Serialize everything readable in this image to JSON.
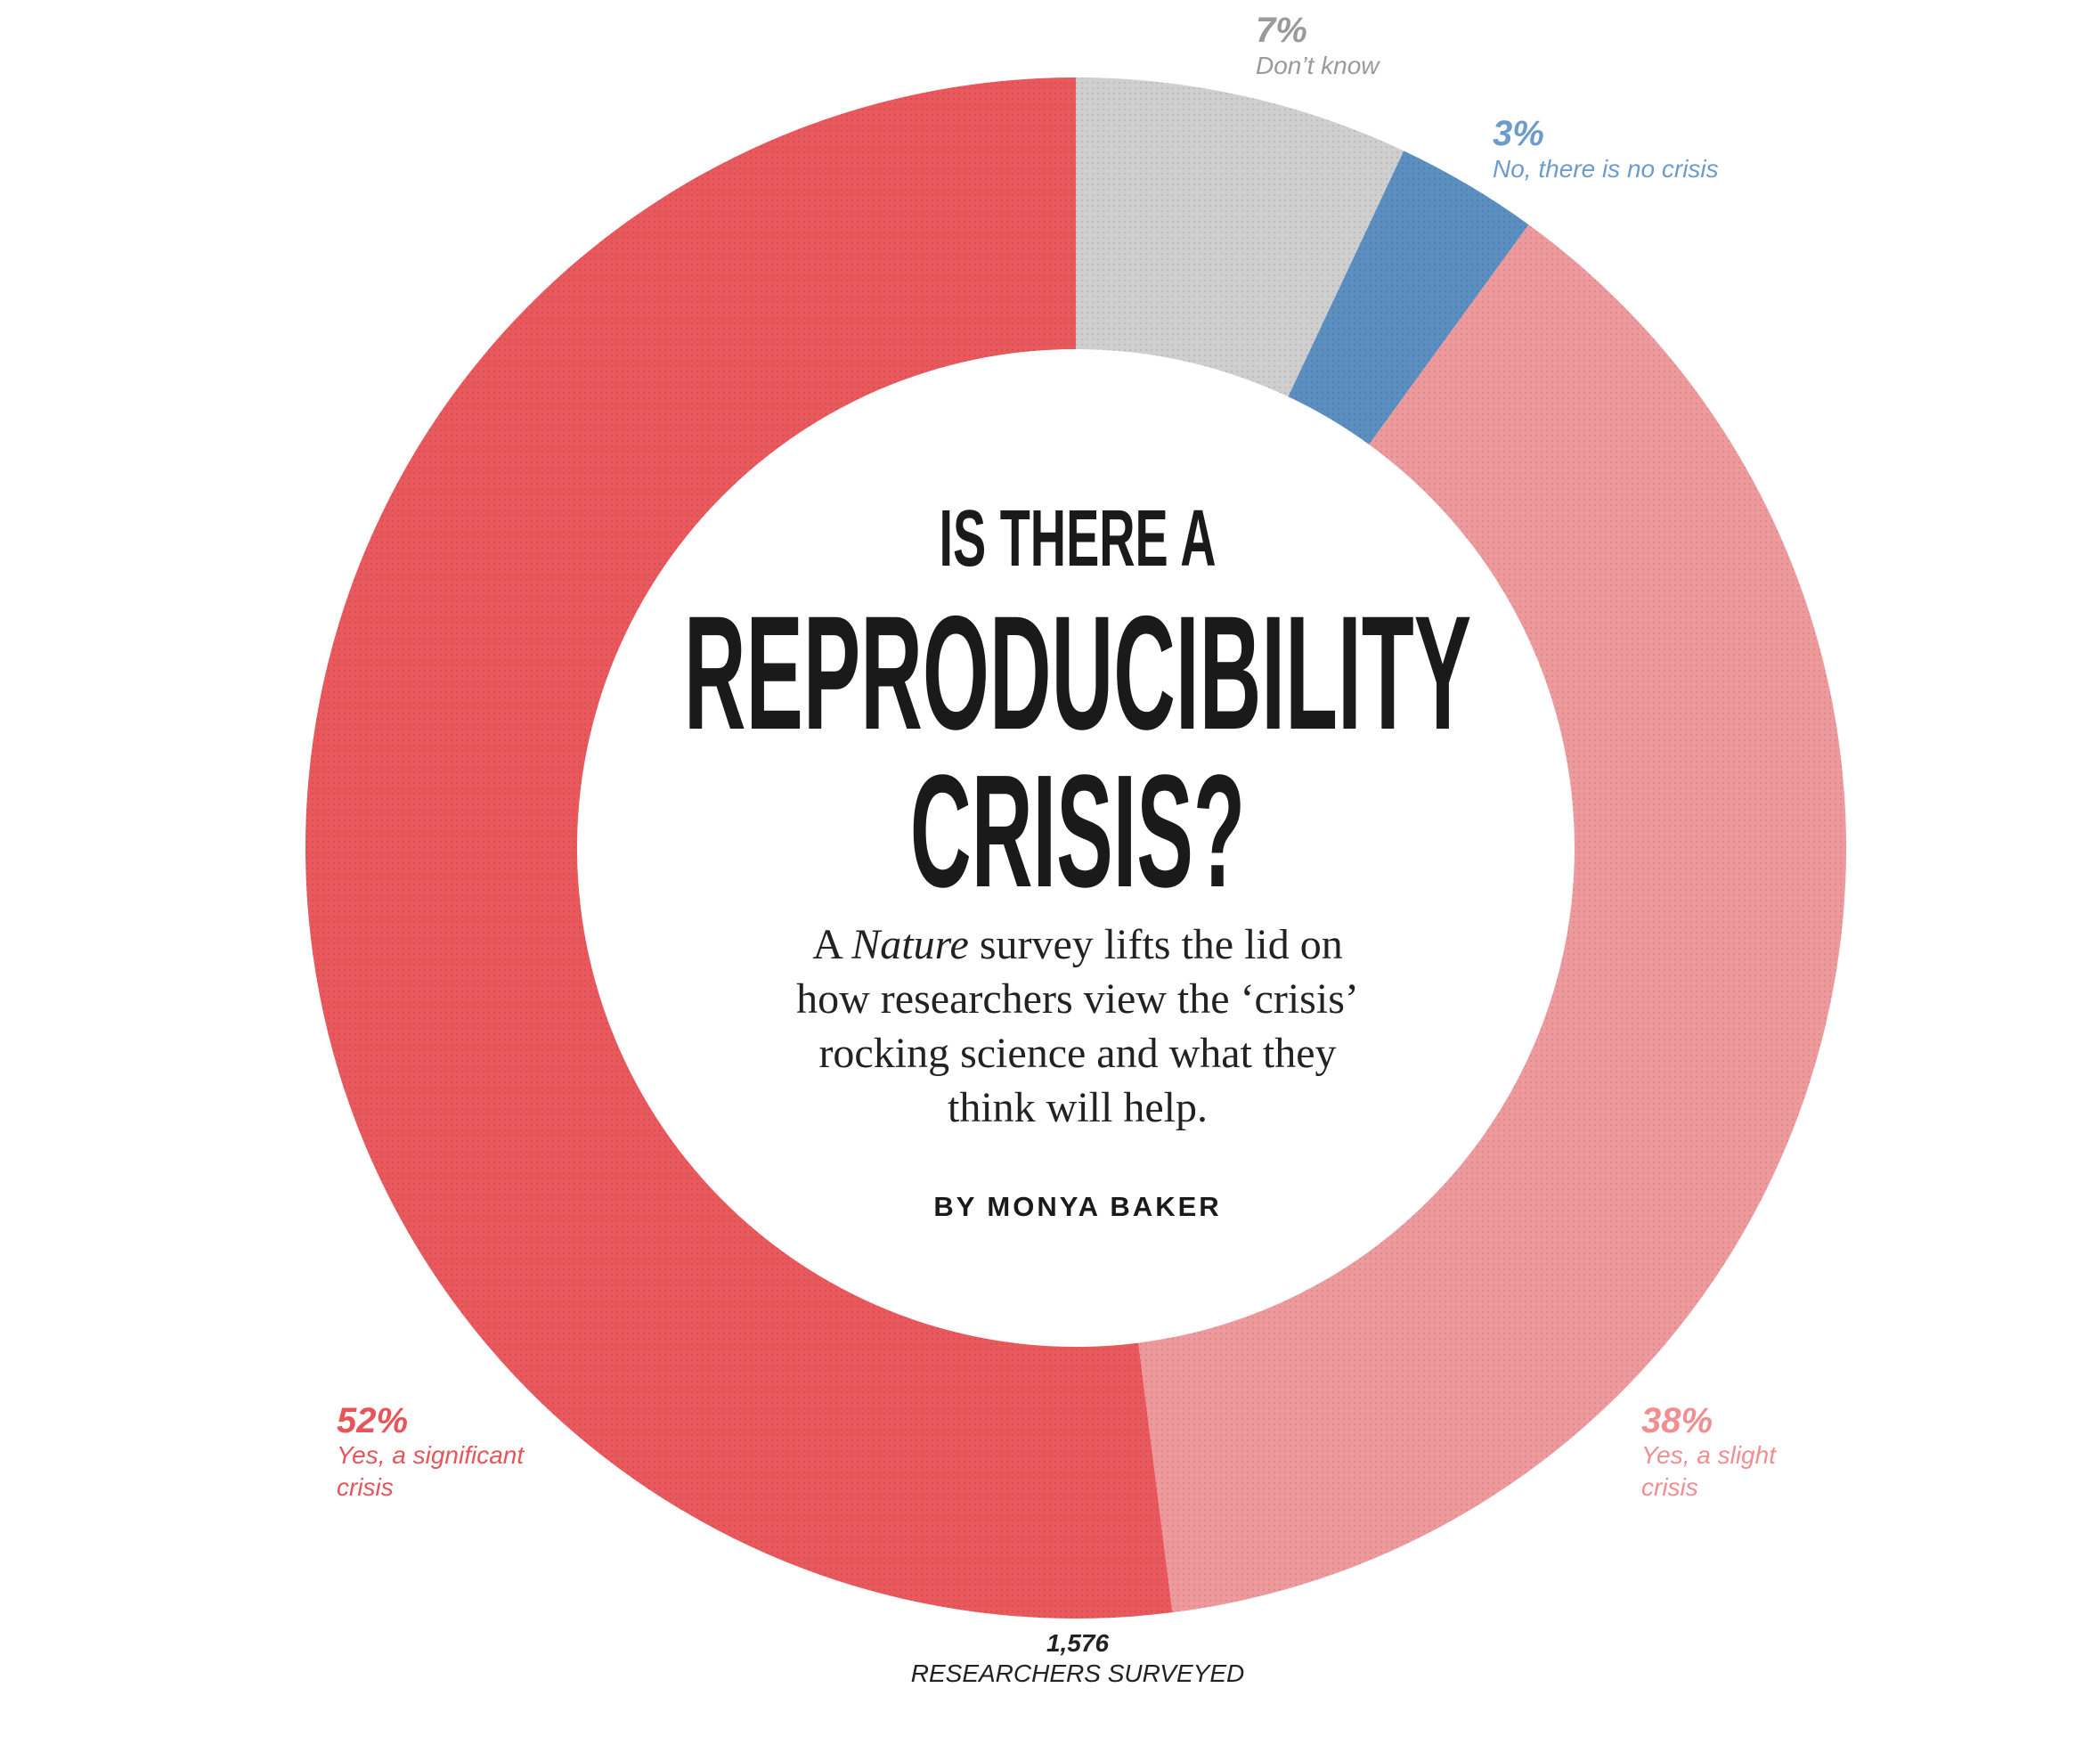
{
  "chart_data": {
    "type": "pie",
    "donut": true,
    "slices": [
      {
        "label": "Don’t know",
        "value": 7,
        "value_label": "7%",
        "color": "#cfcfcf",
        "label_color": "#9a9a9a"
      },
      {
        "label": "No, there is no crisis",
        "value": 3,
        "value_label": "3%",
        "color": "#5b8fc0",
        "label_color": "#6d9ccb"
      },
      {
        "label": "Yes, a slight crisis",
        "value": 38,
        "value_label": "38%",
        "color": "#ee9a9c",
        "label_color": "#ef8f91"
      },
      {
        "label": "Yes, a significant crisis",
        "value": 52,
        "value_label": "52%",
        "color": "#e9585c",
        "label_color": "#e7555a"
      }
    ],
    "start_angle_deg": 0,
    "direction": "clockwise"
  },
  "title": {
    "line1": "IS THERE A",
    "line2": "REPRODUCIBILITY",
    "line3": "CRISIS?"
  },
  "subtitle": {
    "line1_pre": "A ",
    "line1_italic": "Nature",
    "line1_post": " survey lifts the lid on",
    "line2": "how researchers view the ‘crisis’",
    "line3": "rocking science and what they",
    "line4": "think will help."
  },
  "byline": "BY MONYA BAKER",
  "footer": {
    "count": "1,576",
    "label": "RESEARCHERS SURVEYED"
  }
}
